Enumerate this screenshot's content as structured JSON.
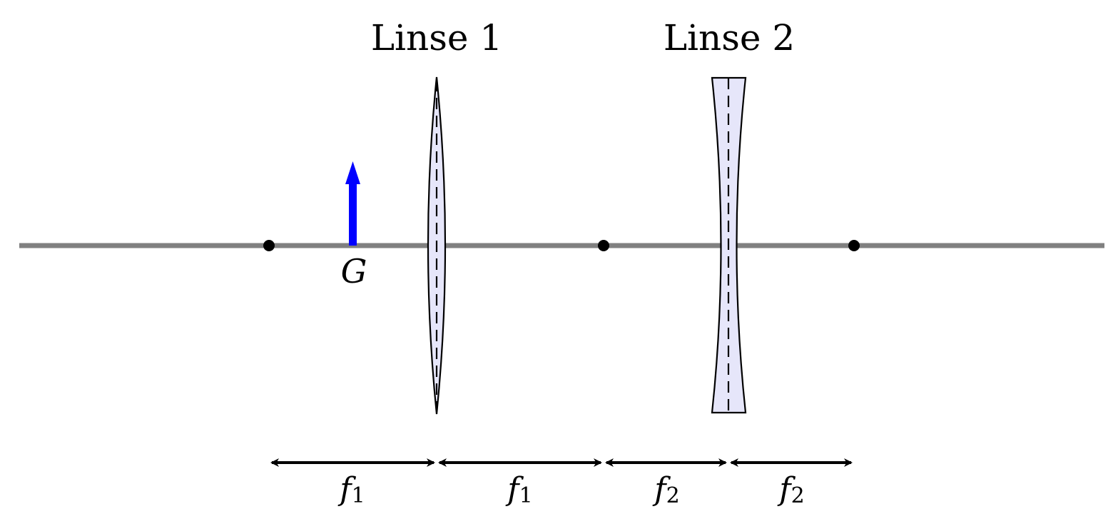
{
  "lenses": [
    {
      "label": "Linse 1",
      "type": "converging"
    },
    {
      "label": "Linse 2",
      "type": "diverging"
    }
  ],
  "object": {
    "label": "G",
    "color": "#0000ff"
  },
  "distances": [
    {
      "symbol": "f",
      "subscript": "1"
    },
    {
      "symbol": "f",
      "subscript": "1"
    },
    {
      "symbol": "f",
      "subscript": "2"
    },
    {
      "symbol": "f",
      "subscript": "2"
    }
  ],
  "colors": {
    "axis": "#808080",
    "lens_fill": "#e6e6fa",
    "object_arrow": "#0000ff",
    "ink": "#000000"
  }
}
